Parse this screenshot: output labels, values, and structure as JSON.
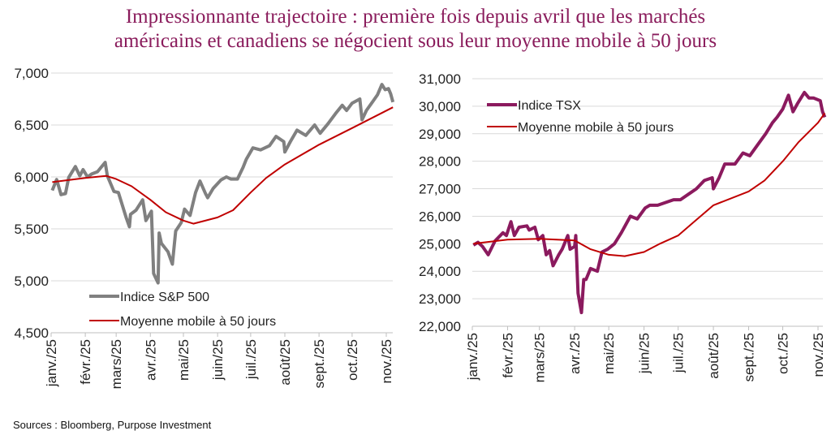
{
  "title_line1": "Impressionnante trajectoire : première fois depuis avril que les marchés",
  "title_line2": "américains et canadiens se négocient sous leur moyenne mobile à 50 jours",
  "source": "Sources : Bloomberg, Purpose Investment",
  "colors": {
    "title": "#8a1c5c",
    "sp500": "#808080",
    "tsx": "#8b1a5e",
    "ma": "#c00000",
    "grid": "#d9d9d9"
  },
  "chart_data": [
    {
      "type": "line",
      "x_type": "date",
      "grid": true,
      "legend_position": "bottom-left",
      "yticks": [
        "7,000",
        "6,500",
        "6,000",
        "5,500",
        "5,000",
        "4,500"
      ],
      "ylim": [
        4500,
        7000
      ],
      "xticks": [
        "janv./25",
        "févr./25",
        "mars/25",
        "avr./25",
        "mai/25",
        "juin/25",
        "juil./25",
        "août/25",
        "sept./25",
        "oct./25",
        "nov./25"
      ],
      "series": [
        {
          "name": "Indice S&P 500",
          "color": "#808080",
          "points": [
            [
              "2025-01-02",
              5870
            ],
            [
              "2025-01-06",
              5975
            ],
            [
              "2025-01-10",
              5830
            ],
            [
              "2025-01-14",
              5840
            ],
            [
              "2025-01-17",
              5995
            ],
            [
              "2025-01-23",
              6100
            ],
            [
              "2025-01-27",
              6010
            ],
            [
              "2025-01-30",
              6070
            ],
            [
              "2025-02-03",
              6000
            ],
            [
              "2025-02-07",
              6030
            ],
            [
              "2025-02-12",
              6050
            ],
            [
              "2025-02-19",
              6140
            ],
            [
              "2025-02-21",
              6010
            ],
            [
              "2025-02-27",
              5860
            ],
            [
              "2025-03-03",
              5850
            ],
            [
              "2025-03-10",
              5610
            ],
            [
              "2025-03-13",
              5520
            ],
            [
              "2025-03-14",
              5640
            ],
            [
              "2025-03-19",
              5680
            ],
            [
              "2025-03-25",
              5780
            ],
            [
              "2025-03-28",
              5580
            ],
            [
              "2025-04-02",
              5670
            ],
            [
              "2025-04-04",
              5070
            ],
            [
              "2025-04-08",
              4980
            ],
            [
              "2025-04-09",
              5460
            ],
            [
              "2025-04-11",
              5360
            ],
            [
              "2025-04-17",
              5280
            ],
            [
              "2025-04-21",
              5160
            ],
            [
              "2025-04-24",
              5480
            ],
            [
              "2025-04-29",
              5560
            ],
            [
              "2025-05-02",
              5690
            ],
            [
              "2025-05-07",
              5630
            ],
            [
              "2025-05-12",
              5850
            ],
            [
              "2025-05-16",
              5960
            ],
            [
              "2025-05-21",
              5840
            ],
            [
              "2025-05-23",
              5800
            ],
            [
              "2025-05-28",
              5890
            ],
            [
              "2025-06-04",
              5970
            ],
            [
              "2025-06-09",
              6000
            ],
            [
              "2025-06-13",
              5980
            ],
            [
              "2025-06-19",
              5980
            ],
            [
              "2025-06-24",
              6090
            ],
            [
              "2025-06-27",
              6170
            ],
            [
              "2025-07-03",
              6280
            ],
            [
              "2025-07-10",
              6260
            ],
            [
              "2025-07-18",
              6300
            ],
            [
              "2025-07-24",
              6390
            ],
            [
              "2025-07-31",
              6340
            ],
            [
              "2025-08-01",
              6240
            ],
            [
              "2025-08-06",
              6340
            ],
            [
              "2025-08-12",
              6450
            ],
            [
              "2025-08-20",
              6400
            ],
            [
              "2025-08-28",
              6500
            ],
            [
              "2025-09-02",
              6420
            ],
            [
              "2025-09-09",
              6510
            ],
            [
              "2025-09-16",
              6610
            ],
            [
              "2025-09-22",
              6690
            ],
            [
              "2025-09-26",
              6640
            ],
            [
              "2025-10-01",
              6710
            ],
            [
              "2025-10-08",
              6750
            ],
            [
              "2025-10-10",
              6550
            ],
            [
              "2025-10-14",
              6640
            ],
            [
              "2025-10-20",
              6730
            ],
            [
              "2025-10-24",
              6790
            ],
            [
              "2025-10-28",
              6890
            ],
            [
              "2025-10-31",
              6840
            ],
            [
              "2025-11-03",
              6850
            ],
            [
              "2025-11-05",
              6800
            ],
            [
              "2025-11-07",
              6720
            ]
          ]
        },
        {
          "name": "Moyenne mobile à 50 jours",
          "color": "#c00000",
          "points": [
            [
              "2025-01-02",
              5950
            ],
            [
              "2025-02-01",
              5990
            ],
            [
              "2025-02-20",
              6010
            ],
            [
              "2025-03-01",
              5980
            ],
            [
              "2025-03-15",
              5910
            ],
            [
              "2025-04-01",
              5780
            ],
            [
              "2025-04-15",
              5660
            ],
            [
              "2025-05-01",
              5580
            ],
            [
              "2025-05-10",
              5550
            ],
            [
              "2025-06-01",
              5610
            ],
            [
              "2025-06-15",
              5680
            ],
            [
              "2025-07-01",
              5850
            ],
            [
              "2025-07-15",
              5990
            ],
            [
              "2025-08-01",
              6120
            ],
            [
              "2025-09-01",
              6310
            ],
            [
              "2025-10-01",
              6470
            ],
            [
              "2025-11-07",
              6670
            ]
          ]
        }
      ]
    },
    {
      "type": "line",
      "x_type": "date",
      "grid": true,
      "legend_position": "top-left",
      "yticks": [
        "31,000",
        "30,000",
        "29,000",
        "28,000",
        "27,000",
        "26,000",
        "25,000",
        "24,000",
        "23,000",
        "22,000"
      ],
      "ylim": [
        22000,
        31000
      ],
      "xticks": [
        "janv./25",
        "févr./25",
        "mars/25",
        "avr./25",
        "mai/25",
        "juin/25",
        "juil./25",
        "août/25",
        "sept./25",
        "oct./25",
        "nov./25"
      ],
      "series": [
        {
          "name": "Indice TSX",
          "color": "#8b1a5e",
          "points": [
            [
              "2025-01-02",
              24950
            ],
            [
              "2025-01-06",
              25050
            ],
            [
              "2025-01-10",
              24900
            ],
            [
              "2025-01-15",
              24600
            ],
            [
              "2025-01-21",
              25100
            ],
            [
              "2025-01-28",
              25400
            ],
            [
              "2025-01-31",
              25300
            ],
            [
              "2025-02-04",
              25800
            ],
            [
              "2025-02-07",
              25300
            ],
            [
              "2025-02-11",
              25600
            ],
            [
              "2025-02-18",
              25650
            ],
            [
              "2025-02-20",
              25500
            ],
            [
              "2025-02-25",
              25600
            ],
            [
              "2025-02-28",
              25150
            ],
            [
              "2025-03-04",
              25300
            ],
            [
              "2025-03-07",
              24600
            ],
            [
              "2025-03-10",
              24750
            ],
            [
              "2025-03-13",
              24200
            ],
            [
              "2025-03-18",
              24600
            ],
            [
              "2025-03-21",
              24800
            ],
            [
              "2025-03-26",
              25300
            ],
            [
              "2025-03-28",
              24800
            ],
            [
              "2025-04-01",
              24900
            ],
            [
              "2025-04-02",
              25300
            ],
            [
              "2025-04-04",
              23200
            ],
            [
              "2025-04-07",
              22500
            ],
            [
              "2025-04-09",
              23700
            ],
            [
              "2025-04-11",
              23700
            ],
            [
              "2025-04-15",
              24100
            ],
            [
              "2025-04-21",
              24000
            ],
            [
              "2025-04-25",
              24700
            ],
            [
              "2025-04-30",
              24800
            ],
            [
              "2025-05-06",
              25000
            ],
            [
              "2025-05-12",
              25400
            ],
            [
              "2025-05-16",
              25700
            ],
            [
              "2025-05-20",
              26000
            ],
            [
              "2025-05-26",
              25900
            ],
            [
              "2025-06-02",
              26300
            ],
            [
              "2025-06-06",
              26400
            ],
            [
              "2025-06-13",
              26400
            ],
            [
              "2025-06-20",
              26500
            ],
            [
              "2025-06-27",
              26600
            ],
            [
              "2025-07-03",
              26600
            ],
            [
              "2025-07-10",
              26800
            ],
            [
              "2025-07-17",
              27000
            ],
            [
              "2025-07-24",
              27300
            ],
            [
              "2025-07-31",
              27400
            ],
            [
              "2025-08-01",
              27000
            ],
            [
              "2025-08-06",
              27400
            ],
            [
              "2025-08-11",
              27900
            ],
            [
              "2025-08-20",
              27900
            ],
            [
              "2025-08-27",
              28300
            ],
            [
              "2025-09-02",
              28200
            ],
            [
              "2025-09-09",
              28600
            ],
            [
              "2025-09-16",
              29000
            ],
            [
              "2025-09-22",
              29400
            ],
            [
              "2025-09-26",
              29600
            ],
            [
              "2025-10-01",
              29900
            ],
            [
              "2025-10-06",
              30400
            ],
            [
              "2025-10-10",
              29800
            ],
            [
              "2025-10-14",
              30100
            ],
            [
              "2025-10-20",
              30500
            ],
            [
              "2025-10-24",
              30300
            ],
            [
              "2025-10-28",
              30300
            ],
            [
              "2025-11-03",
              30200
            ],
            [
              "2025-11-05",
              29800
            ],
            [
              "2025-11-07",
              29600
            ]
          ]
        },
        {
          "name": "Moyenne mobile à 50 jours",
          "color": "#c00000",
          "points": [
            [
              "2025-01-02",
              25000
            ],
            [
              "2025-02-01",
              25150
            ],
            [
              "2025-03-01",
              25180
            ],
            [
              "2025-04-01",
              25120
            ],
            [
              "2025-04-15",
              24800
            ],
            [
              "2025-05-01",
              24600
            ],
            [
              "2025-05-15",
              24550
            ],
            [
              "2025-06-01",
              24700
            ],
            [
              "2025-06-15",
              25000
            ],
            [
              "2025-07-01",
              25300
            ],
            [
              "2025-07-15",
              25800
            ],
            [
              "2025-08-01",
              26400
            ],
            [
              "2025-09-01",
              26900
            ],
            [
              "2025-09-15",
              27300
            ],
            [
              "2025-10-01",
              28000
            ],
            [
              "2025-10-15",
              28700
            ],
            [
              "2025-11-01",
              29400
            ],
            [
              "2025-11-07",
              29750
            ]
          ]
        }
      ]
    }
  ]
}
